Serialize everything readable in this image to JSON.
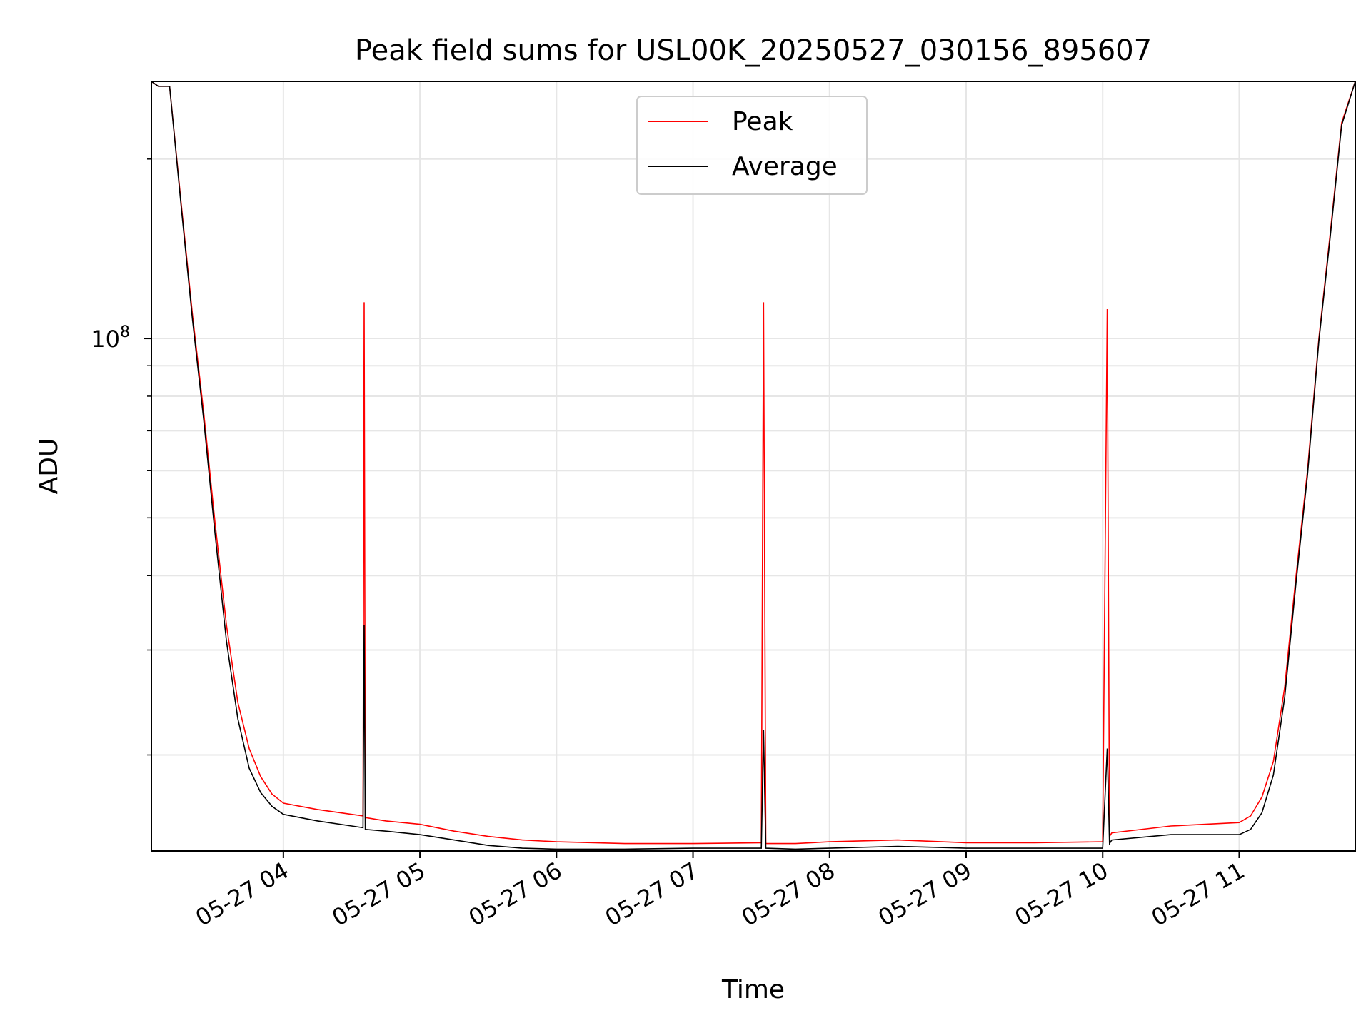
{
  "chart_data": {
    "type": "line",
    "title": "Peak field sums for USL00K_20250527_030156_895607",
    "xlabel": "Time",
    "ylabel": "ADU",
    "yscale": "log",
    "xlim": [
      "2025-05-27T03:02:00",
      "2025-05-27T11:51:00"
    ],
    "ylim": [
      13800000,
      270000000
    ],
    "grid": true,
    "legend_position": "upper center",
    "x_tick_labels": [
      "05-27 04",
      "05-27 05",
      "05-27 06",
      "05-27 07",
      "05-27 08",
      "05-27 09",
      "05-27 10",
      "05-27 11"
    ],
    "y_tick_labels": [
      {
        "base": "10",
        "exponent": "8"
      }
    ],
    "series": [
      {
        "name": "Peak",
        "color": "#ff0000",
        "x": [
          "2025-05-27T03:02:00",
          "2025-05-27T03:05:00",
          "2025-05-27T03:10:00",
          "2025-05-27T03:15:00",
          "2025-05-27T03:20:00",
          "2025-05-27T03:25:00",
          "2025-05-27T03:30:00",
          "2025-05-27T03:35:00",
          "2025-05-27T03:40:00",
          "2025-05-27T03:45:00",
          "2025-05-27T03:50:00",
          "2025-05-27T03:55:00",
          "2025-05-27T04:00:00",
          "2025-05-27T04:15:00",
          "2025-05-27T04:30:00",
          "2025-05-27T04:35:00",
          "2025-05-27T04:35:30",
          "2025-05-27T04:36:00",
          "2025-05-27T04:45:00",
          "2025-05-27T05:00:00",
          "2025-05-27T05:15:00",
          "2025-05-27T05:30:00",
          "2025-05-27T05:45:00",
          "2025-05-27T06:00:00",
          "2025-05-27T06:30:00",
          "2025-05-27T07:00:00",
          "2025-05-27T07:30:00",
          "2025-05-27T07:31:00",
          "2025-05-27T07:32:00",
          "2025-05-27T07:45:00",
          "2025-05-27T08:00:00",
          "2025-05-27T08:30:00",
          "2025-05-27T09:00:00",
          "2025-05-27T09:30:00",
          "2025-05-27T10:00:00",
          "2025-05-27T10:02:00",
          "2025-05-27T10:03:00",
          "2025-05-27T10:04:00",
          "2025-05-27T10:30:00",
          "2025-05-27T11:00:00",
          "2025-05-27T11:05:00",
          "2025-05-27T11:10:00",
          "2025-05-27T11:15:00",
          "2025-05-27T11:20:00",
          "2025-05-27T11:25:00",
          "2025-05-27T11:30:00",
          "2025-05-27T11:35:00",
          "2025-05-27T11:40:00",
          "2025-05-27T11:45:00",
          "2025-05-27T11:51:00"
        ],
        "y": [
          270000000,
          265000000,
          265000000,
          170000000,
          110000000,
          75000000,
          49000000,
          33000000,
          24500000,
          20500000,
          18400000,
          17200000,
          16600000,
          16200000,
          15900000,
          15800000,
          115000000,
          15700000,
          15500000,
          15300000,
          14900000,
          14600000,
          14400000,
          14300000,
          14200000,
          14200000,
          14250000,
          115000000,
          14200000,
          14200000,
          14300000,
          14400000,
          14250000,
          14250000,
          14300000,
          112000000,
          14600000,
          14800000,
          15200000,
          15400000,
          15800000,
          17000000,
          19500000,
          26000000,
          40000000,
          60000000,
          100000000,
          150000000,
          230000000,
          270000000
        ]
      },
      {
        "name": "Average",
        "color": "#000000",
        "x": [
          "2025-05-27T03:02:00",
          "2025-05-27T03:05:00",
          "2025-05-27T03:10:00",
          "2025-05-27T03:15:00",
          "2025-05-27T03:20:00",
          "2025-05-27T03:25:00",
          "2025-05-27T03:30:00",
          "2025-05-27T03:35:00",
          "2025-05-27T03:40:00",
          "2025-05-27T03:45:00",
          "2025-05-27T03:50:00",
          "2025-05-27T03:55:00",
          "2025-05-27T04:00:00",
          "2025-05-27T04:15:00",
          "2025-05-27T04:30:00",
          "2025-05-27T04:35:00",
          "2025-05-27T04:35:30",
          "2025-05-27T04:36:00",
          "2025-05-27T04:45:00",
          "2025-05-27T05:00:00",
          "2025-05-27T05:15:00",
          "2025-05-27T05:30:00",
          "2025-05-27T05:45:00",
          "2025-05-27T06:00:00",
          "2025-05-27T06:30:00",
          "2025-05-27T07:00:00",
          "2025-05-27T07:30:00",
          "2025-05-27T07:31:00",
          "2025-05-27T07:32:00",
          "2025-05-27T07:45:00",
          "2025-05-27T08:00:00",
          "2025-05-27T08:30:00",
          "2025-05-27T09:00:00",
          "2025-05-27T09:30:00",
          "2025-05-27T10:00:00",
          "2025-05-27T10:02:00",
          "2025-05-27T10:03:00",
          "2025-05-27T10:04:00",
          "2025-05-27T10:30:00",
          "2025-05-27T11:00:00",
          "2025-05-27T11:05:00",
          "2025-05-27T11:10:00",
          "2025-05-27T11:15:00",
          "2025-05-27T11:20:00",
          "2025-05-27T11:25:00",
          "2025-05-27T11:30:00",
          "2025-05-27T11:35:00",
          "2025-05-27T11:40:00",
          "2025-05-27T11:45:00",
          "2025-05-27T11:51:00"
        ],
        "y": [
          270000000,
          265000000,
          265000000,
          168000000,
          108000000,
          73000000,
          47000000,
          31000000,
          23000000,
          19000000,
          17300000,
          16400000,
          15900000,
          15500000,
          15200000,
          15100000,
          33000000,
          15000000,
          14900000,
          14700000,
          14400000,
          14100000,
          13950000,
          13900000,
          13900000,
          13950000,
          13950000,
          22000000,
          13950000,
          13900000,
          13950000,
          14050000,
          13950000,
          13950000,
          13950000,
          20500000,
          14200000,
          14400000,
          14700000,
          14700000,
          15000000,
          16000000,
          18500000,
          25000000,
          39000000,
          59000000,
          99000000,
          148000000,
          228000000,
          270000000
        ]
      }
    ]
  }
}
